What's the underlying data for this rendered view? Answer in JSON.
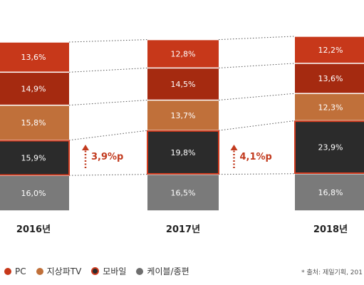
{
  "chart_data": {
    "type": "bar",
    "stacked": true,
    "categories": [
      "2016년",
      "2017년",
      "2018년"
    ],
    "series": [
      {
        "name": "케이블/종편",
        "values": [
          16.0,
          16.5,
          16.8
        ],
        "labels": [
          "16,0%",
          "16,5%",
          "16,8%"
        ],
        "color": "#7a7a7a"
      },
      {
        "name": "모바일",
        "values": [
          15.9,
          19.8,
          23.9
        ],
        "labels": [
          "15,9%",
          "19,8%",
          "23,9%"
        ],
        "color": "#2b2b2b",
        "outline": "#d13b1f"
      },
      {
        "name": "지상파TV",
        "values": [
          15.8,
          13.7,
          12.3
        ],
        "labels": [
          "15,8%",
          "13,7%",
          "12,3%"
        ],
        "color": "#c0703a"
      },
      {
        "name": "",
        "values": [
          14.9,
          14.5,
          13.6
        ],
        "labels": [
          "14,9%",
          "14,5%",
          "13,6%"
        ],
        "color": "#a52a10"
      },
      {
        "name": "PC",
        "values": [
          13.6,
          12.8,
          12.2
        ],
        "labels": [
          "13,6%",
          "12,8%",
          "12,2%"
        ],
        "color": "#c7381a"
      }
    ],
    "annotations": [
      {
        "between": [
          0,
          1
        ],
        "text": "3,9%p"
      },
      {
        "between": [
          1,
          2
        ],
        "text": "4,1%p"
      }
    ]
  },
  "legend": [
    {
      "label": "PC",
      "color": "#c7381a",
      "outlined": false
    },
    {
      "label": "지상파TV",
      "color": "#c0703a",
      "outlined": false
    },
    {
      "label": "모바일",
      "color": "#2b2b2b",
      "outlined": true
    },
    {
      "label": "케이블/종편",
      "color": "#6e6e6e",
      "outlined": false
    }
  ],
  "source_text": "* 출처: 제일기획, 201"
}
